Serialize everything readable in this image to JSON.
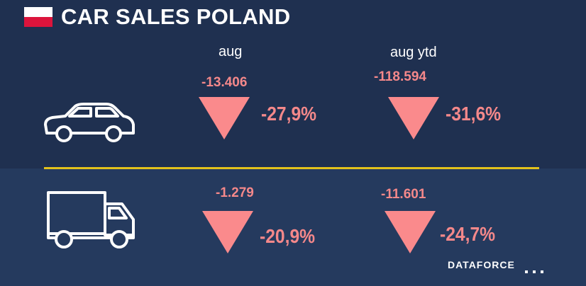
{
  "header": {
    "title": "CAR SALES POLAND",
    "flag_icon": "poland-flag-icon"
  },
  "columns": {
    "aug_label": "aug",
    "aug_ytd_label": "aug ytd"
  },
  "rows": [
    {
      "category_icon": "car-icon",
      "aug": {
        "change": "-13.406",
        "percent": "-27,9%",
        "direction_icon": "down-triangle-icon"
      },
      "aug_ytd": {
        "change": "-118.594",
        "percent": "-31,6%",
        "direction_icon": "down-triangle-icon"
      }
    },
    {
      "category_icon": "truck-icon",
      "aug": {
        "change": "-1.279",
        "percent": "-20,9%",
        "direction_icon": "down-triangle-icon"
      },
      "aug_ytd": {
        "change": "-11.601",
        "percent": "-24,7%",
        "direction_icon": "down-triangle-icon"
      }
    }
  ],
  "footer": {
    "brand": "DATAFORCE"
  },
  "colors": {
    "background": "#1f3050",
    "accent_line": "#e3c21c",
    "negative": "#f4888a"
  }
}
